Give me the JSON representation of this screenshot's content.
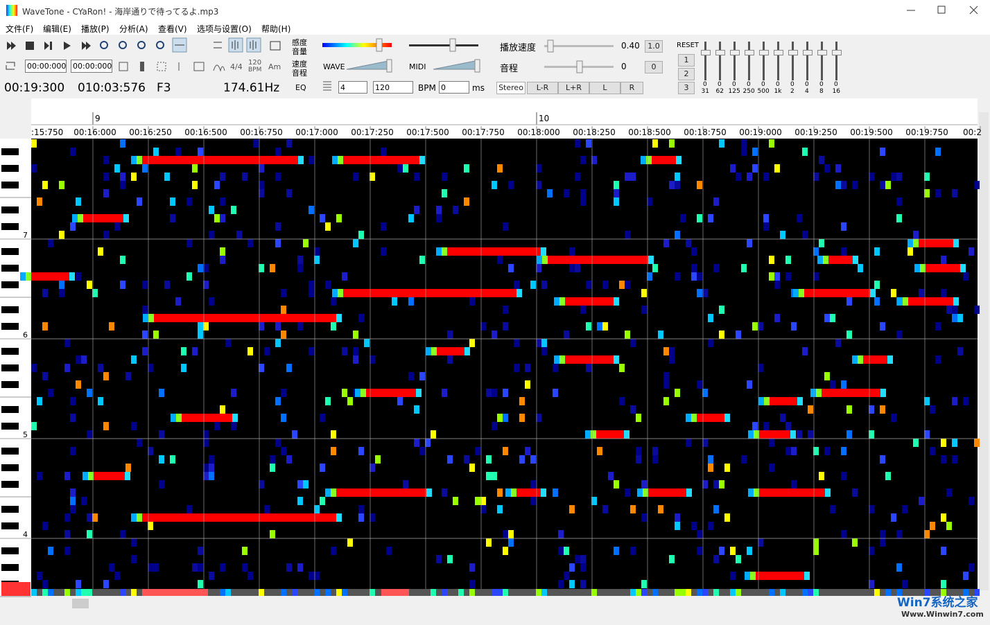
{
  "window": {
    "title": "WaveTone - CYaRon! - 海岸通りで待ってるよ.mp3"
  },
  "menu": [
    "文件(F)",
    "编辑(E)",
    "播放(P)",
    "分析(A)",
    "查看(V)",
    "选项与设置(O)",
    "帮助(H)"
  ],
  "toolbar": {
    "loop_start": "00:00:000",
    "loop_end": "00:00:000",
    "meter": "4/4",
    "tempo": "120",
    "tempo_unit": "BPM",
    "key": "Am"
  },
  "status": {
    "position": "00:19:300",
    "length": "010:03:576",
    "note": "F3",
    "frequency": "174.61Hz"
  },
  "sensitivity": {
    "labels": [
      "感度",
      "音量",
      "速度",
      "音程"
    ],
    "wave": "WAVE",
    "midi": "MIDI",
    "eq": "EQ"
  },
  "rhythm": {
    "beats": "4",
    "tempo": "120",
    "tempo_unit": "BPM",
    "offset": "0",
    "offset_unit": "ms"
  },
  "playback": {
    "speed_label": "播放速度",
    "speed": "0.40",
    "speed_reset": "1.0",
    "pitch_label": "音程",
    "pitch": "0",
    "pitch_reset": "0",
    "stereo": "Stereo",
    "channels": [
      "L-R",
      "L+R",
      "L",
      "R"
    ]
  },
  "equalizer": {
    "reset": "RESET",
    "presets": [
      "1",
      "2",
      "3"
    ],
    "gains": [
      "0",
      "0",
      "0",
      "0",
      "0",
      "0",
      "0",
      "0",
      "0",
      "0"
    ],
    "bands": [
      "31",
      "62",
      "125",
      "250",
      "500",
      "1k",
      "2",
      "4",
      "8",
      "16"
    ]
  },
  "timeline": {
    "measures": [
      "9",
      "10"
    ],
    "times": [
      ":15:750",
      "00:16:000",
      "00:16:250",
      "00:16:500",
      "00:16:750",
      "00:17:000",
      "00:17:250",
      "00:17:500",
      "00:17:750",
      "00:18:000",
      "00:18:250",
      "00:18:500",
      "00:18:750",
      "00:19:000",
      "00:19:250",
      "00:19:500",
      "00:19:750",
      "00:2"
    ]
  },
  "keyboard": {
    "octaves": [
      "7",
      "6",
      "5",
      "4"
    ]
  },
  "watermark": {
    "brand": "Win7系统之家",
    "url": "Www.Winwin7.com"
  }
}
